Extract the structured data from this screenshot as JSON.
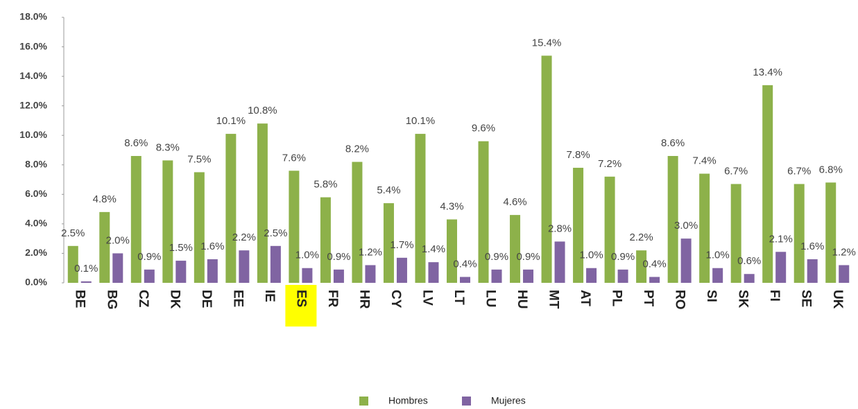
{
  "chart_data": {
    "type": "bar",
    "categories": [
      "BE",
      "BG",
      "CZ",
      "DK",
      "DE",
      "EE",
      "IE",
      "ES",
      "FR",
      "HR",
      "CY",
      "LV",
      "LT",
      "LU",
      "HU",
      "MT",
      "AT",
      "PL",
      "PT",
      "RO",
      "SI",
      "SK",
      "FI",
      "SE",
      "UK"
    ],
    "series": [
      {
        "name": "Hombres",
        "color": "#8db14a",
        "values": [
          2.5,
          4.8,
          8.6,
          8.3,
          7.5,
          10.1,
          10.8,
          7.6,
          5.8,
          8.2,
          5.4,
          10.1,
          4.3,
          9.6,
          4.6,
          15.4,
          7.8,
          7.2,
          2.2,
          8.6,
          7.4,
          6.7,
          13.4,
          6.7,
          6.8
        ],
        "value_labels": [
          "2.5%",
          "4.8%",
          "8.6%",
          "8.3%",
          "7.5%",
          "10.1%",
          "10.8%",
          "7.6%",
          "5.8%",
          "8.2%",
          "5.4%",
          "10.1%",
          "4.3%",
          "9.6%",
          "4.6%",
          "15.4%",
          "7.8%",
          "7.2%",
          "2.2%",
          "8.6%",
          "7.4%",
          "6.7%",
          "13.4%",
          "6.7%",
          "6.8%"
        ]
      },
      {
        "name": "Mujeres",
        "color": "#8064a2",
        "values": [
          0.1,
          2.0,
          0.9,
          1.5,
          1.6,
          2.2,
          2.5,
          1.0,
          0.9,
          1.2,
          1.7,
          1.4,
          0.4,
          0.9,
          0.9,
          2.8,
          1.0,
          0.9,
          0.4,
          3.0,
          1.0,
          0.6,
          2.1,
          1.6,
          1.2
        ],
        "value_labels": [
          "0.1%",
          "2.0%",
          "0.9%",
          "1.5%",
          "1.6%",
          "2.2%",
          "2.5%",
          "1.0%",
          "0.9%",
          "1.2%",
          "1.7%",
          "1.4%",
          "0.4%",
          "0.9%",
          "0.9%",
          "2.8%",
          "1.0%",
          "0.9%",
          "0.4%",
          "3.0%",
          "1.0%",
          "0.6%",
          "2.1%",
          "1.6%",
          "1.2%"
        ]
      }
    ],
    "ylim": [
      0,
      18
    ],
    "yticks": [
      {
        "value": 0,
        "label": "0.0%"
      },
      {
        "value": 2,
        "label": "2.0%"
      },
      {
        "value": 4,
        "label": "4.0%"
      },
      {
        "value": 6,
        "label": "6.0%"
      },
      {
        "value": 8,
        "label": "8.0%"
      },
      {
        "value": 10,
        "label": "10.0%"
      },
      {
        "value": 12,
        "label": "12.0%"
      },
      {
        "value": 14,
        "label": "14.0%"
      },
      {
        "value": 16,
        "label": "16.0%"
      },
      {
        "value": 18,
        "label": "18.0%"
      }
    ],
    "grid": false,
    "legend": "bottom",
    "highlighted": "ES",
    "highlight_color": "#ffff00"
  }
}
